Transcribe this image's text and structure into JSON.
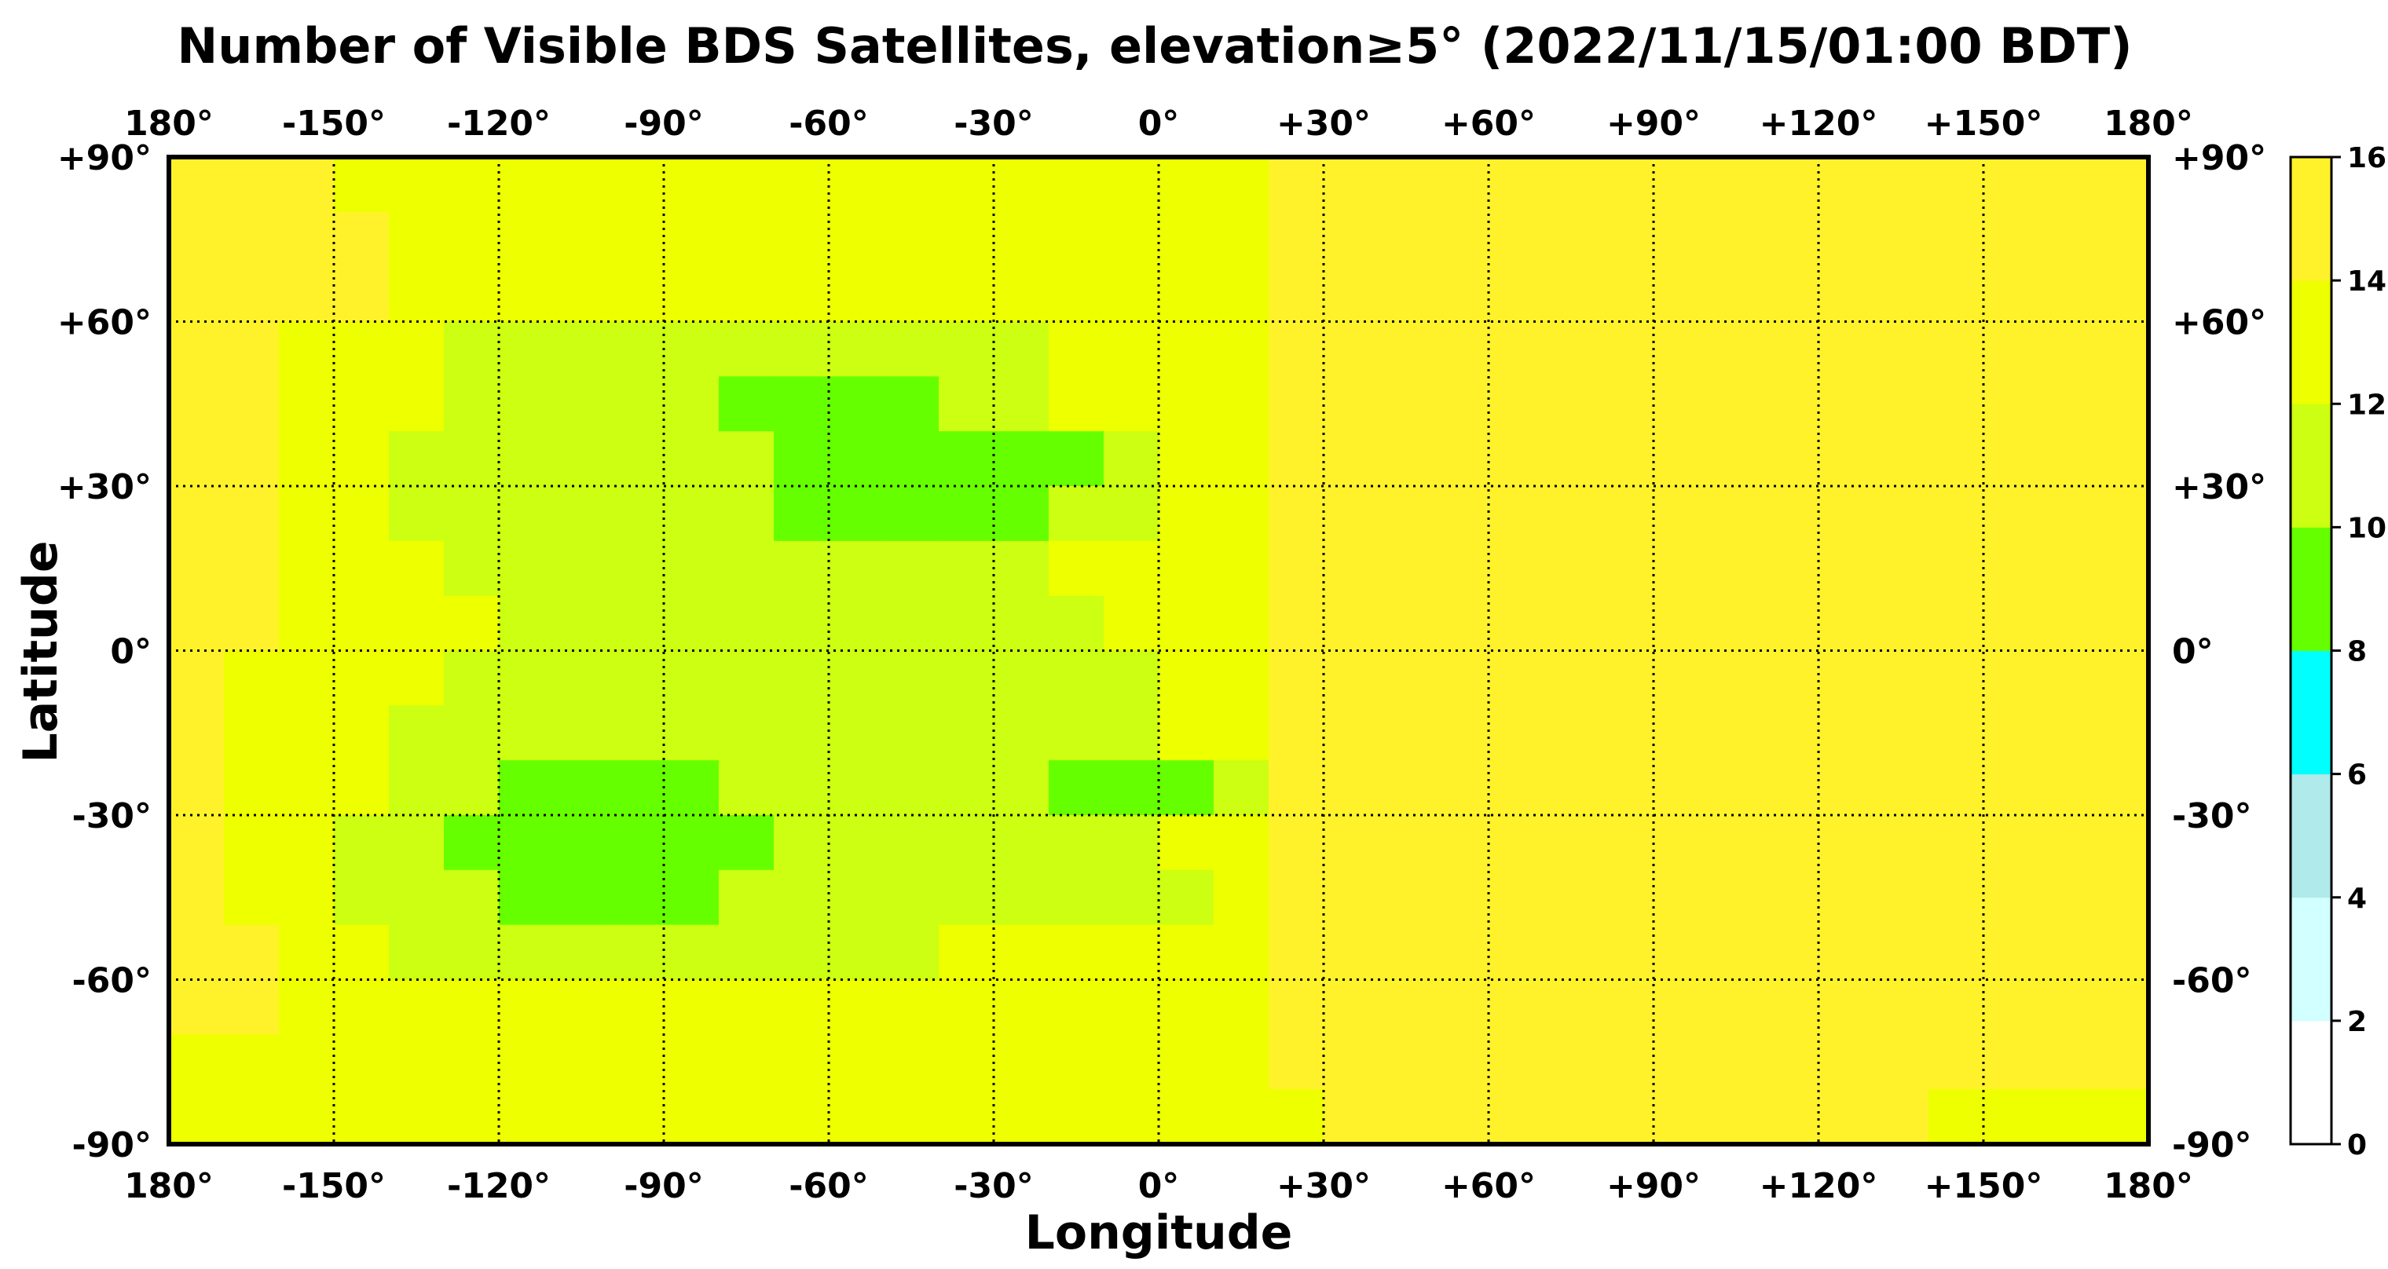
{
  "chart_data": {
    "type": "heatmap",
    "title": "Number of Visible BDS Satellites, elevation≥5° (2022/11/15/01:00 BDT)",
    "xlabel": "Longitude",
    "ylabel": "Latitude",
    "xlim": [
      -180,
      180
    ],
    "ylim": [
      -90,
      90
    ],
    "grid": true,
    "x_ticks": [
      -180,
      -150,
      -120,
      -90,
      -60,
      -30,
      0,
      30,
      60,
      90,
      120,
      150,
      180
    ],
    "x_tick_labels": [
      "180°",
      "-150°",
      "-120°",
      "-90°",
      "-60°",
      "-30°",
      "0°",
      "+30°",
      "+60°",
      "+90°",
      "+120°",
      "+150°",
      "180°"
    ],
    "y_ticks": [
      90,
      60,
      30,
      0,
      -30,
      -60,
      -90
    ],
    "y_tick_labels": [
      "+90°",
      "+60°",
      "+30°",
      "0°",
      "-30°",
      "-60°",
      "-90°"
    ],
    "grid_resolution_deg": 10,
    "grid_lon_start": -180,
    "grid_lat_start": 90,
    "values": [
      [
        15,
        15,
        15,
        13,
        13,
        13,
        13,
        13,
        13,
        13,
        13,
        13,
        13,
        13,
        13,
        13,
        13,
        13,
        13,
        13,
        15,
        15,
        15,
        15,
        15,
        15,
        15,
        15,
        15,
        15,
        15,
        15,
        15,
        15,
        15,
        15
      ],
      [
        15,
        15,
        15,
        15,
        13,
        13,
        13,
        13,
        13,
        13,
        13,
        13,
        13,
        13,
        13,
        13,
        13,
        13,
        13,
        13,
        15,
        15,
        15,
        15,
        15,
        15,
        15,
        15,
        15,
        15,
        15,
        15,
        15,
        15,
        15,
        15
      ],
      [
        15,
        15,
        15,
        15,
        13,
        13,
        13,
        13,
        13,
        13,
        13,
        13,
        13,
        13,
        13,
        13,
        13,
        13,
        13,
        13,
        15,
        15,
        15,
        15,
        15,
        15,
        15,
        15,
        15,
        15,
        15,
        15,
        15,
        15,
        15,
        15
      ],
      [
        15,
        15,
        13,
        13,
        13,
        11,
        11,
        11,
        11,
        11,
        11,
        11,
        11,
        11,
        11,
        11,
        13,
        13,
        13,
        13,
        15,
        15,
        15,
        15,
        15,
        15,
        15,
        15,
        15,
        15,
        15,
        15,
        15,
        15,
        15,
        15
      ],
      [
        15,
        15,
        13,
        13,
        13,
        11,
        11,
        11,
        11,
        11,
        9,
        9,
        9,
        9,
        11,
        11,
        13,
        13,
        13,
        13,
        15,
        15,
        15,
        15,
        15,
        15,
        15,
        15,
        15,
        15,
        15,
        15,
        15,
        15,
        15,
        15
      ],
      [
        15,
        15,
        13,
        13,
        11,
        11,
        11,
        11,
        11,
        11,
        11,
        9,
        9,
        9,
        9,
        9,
        9,
        11,
        13,
        13,
        15,
        15,
        15,
        15,
        15,
        15,
        15,
        15,
        15,
        15,
        15,
        15,
        15,
        15,
        15,
        15
      ],
      [
        15,
        15,
        13,
        13,
        11,
        11,
        11,
        11,
        11,
        11,
        11,
        9,
        9,
        9,
        9,
        9,
        11,
        11,
        13,
        13,
        15,
        15,
        15,
        15,
        15,
        15,
        15,
        15,
        15,
        15,
        15,
        15,
        15,
        15,
        15,
        15
      ],
      [
        15,
        15,
        13,
        13,
        13,
        11,
        11,
        11,
        11,
        11,
        11,
        11,
        11,
        11,
        11,
        11,
        13,
        13,
        13,
        13,
        15,
        15,
        15,
        15,
        15,
        15,
        15,
        15,
        15,
        15,
        15,
        15,
        15,
        15,
        15,
        15
      ],
      [
        15,
        15,
        13,
        13,
        13,
        13,
        11,
        11,
        11,
        11,
        11,
        11,
        11,
        11,
        11,
        11,
        11,
        13,
        13,
        13,
        15,
        15,
        15,
        15,
        15,
        15,
        15,
        15,
        15,
        15,
        15,
        15,
        15,
        15,
        15,
        15
      ],
      [
        15,
        13,
        13,
        13,
        13,
        11,
        11,
        11,
        11,
        11,
        11,
        11,
        11,
        11,
        11,
        11,
        11,
        11,
        13,
        13,
        15,
        15,
        15,
        15,
        15,
        15,
        15,
        15,
        15,
        15,
        15,
        15,
        15,
        15,
        15,
        15
      ],
      [
        15,
        13,
        13,
        13,
        11,
        11,
        11,
        11,
        11,
        11,
        11,
        11,
        11,
        11,
        11,
        11,
        11,
        11,
        13,
        13,
        15,
        15,
        15,
        15,
        15,
        15,
        15,
        15,
        15,
        15,
        15,
        15,
        15,
        15,
        15,
        15
      ],
      [
        15,
        13,
        13,
        13,
        11,
        11,
        9,
        9,
        9,
        9,
        11,
        11,
        11,
        11,
        11,
        11,
        9,
        9,
        9,
        11,
        15,
        15,
        15,
        15,
        15,
        15,
        15,
        15,
        15,
        15,
        15,
        15,
        15,
        15,
        15,
        15
      ],
      [
        15,
        13,
        13,
        11,
        11,
        9,
        9,
        9,
        9,
        9,
        9,
        11,
        11,
        11,
        11,
        11,
        11,
        11,
        13,
        13,
        15,
        15,
        15,
        15,
        15,
        15,
        15,
        15,
        15,
        15,
        15,
        15,
        15,
        15,
        15,
        15
      ],
      [
        15,
        13,
        13,
        11,
        11,
        11,
        9,
        9,
        9,
        9,
        11,
        11,
        11,
        11,
        11,
        11,
        11,
        11,
        11,
        13,
        15,
        15,
        15,
        15,
        15,
        15,
        15,
        15,
        15,
        15,
        15,
        15,
        15,
        15,
        15,
        15
      ],
      [
        15,
        15,
        13,
        13,
        11,
        11,
        11,
        11,
        11,
        11,
        11,
        11,
        11,
        11,
        13,
        13,
        13,
        13,
        13,
        13,
        15,
        15,
        15,
        15,
        15,
        15,
        15,
        15,
        15,
        15,
        15,
        15,
        15,
        15,
        15,
        15
      ],
      [
        15,
        15,
        13,
        13,
        13,
        13,
        13,
        13,
        13,
        13,
        13,
        13,
        13,
        13,
        13,
        13,
        13,
        13,
        13,
        13,
        15,
        15,
        15,
        15,
        15,
        15,
        15,
        15,
        15,
        15,
        15,
        15,
        15,
        15,
        15,
        15
      ],
      [
        13,
        13,
        13,
        13,
        13,
        13,
        13,
        13,
        13,
        13,
        13,
        13,
        13,
        13,
        13,
        13,
        13,
        13,
        13,
        13,
        15,
        15,
        15,
        15,
        15,
        15,
        15,
        15,
        15,
        15,
        15,
        15,
        15,
        15,
        15,
        15
      ],
      [
        13,
        13,
        13,
        13,
        13,
        13,
        13,
        13,
        13,
        13,
        13,
        13,
        13,
        13,
        13,
        13,
        13,
        13,
        13,
        13,
        13,
        15,
        15,
        15,
        15,
        15,
        15,
        15,
        15,
        15,
        15,
        15,
        13,
        13,
        13,
        13
      ]
    ],
    "colorbar": {
      "bounds": [
        0,
        2,
        4,
        6,
        8,
        10,
        12,
        14,
        16
      ],
      "tick_labels": [
        "0",
        "2",
        "4",
        "6",
        "8",
        "10",
        "12",
        "14",
        "16"
      ],
      "colors": [
        "#ffffff",
        "#d2ffff",
        "#b0eaea",
        "#00ffff",
        "#66ff00",
        "#ccff11",
        "#eeff00",
        "#fff22a"
      ]
    }
  }
}
